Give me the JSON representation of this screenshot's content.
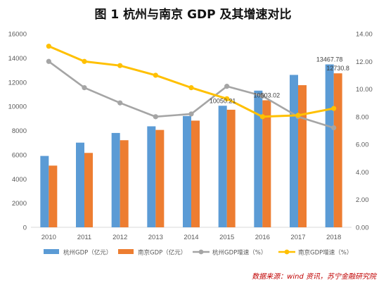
{
  "title": "图 1   杭州与南京 GDP 及其增速对比",
  "source": "数据来源：wind 资讯，苏宁金融研究院",
  "colors": {
    "hz_gdp": "#5b9bd5",
    "nj_gdp": "#ed7d31",
    "hz_growth": "#a5a5a5",
    "nj_growth": "#ffc000"
  },
  "chart_data": {
    "type": "bar",
    "categories": [
      "2010",
      "2011",
      "2012",
      "2013",
      "2014",
      "2015",
      "2016",
      "2017",
      "2018"
    ],
    "series": [
      {
        "name": "杭州GDP（亿元）",
        "kind": "bar",
        "axis": "left",
        "values": [
          5900,
          7000,
          7800,
          8350,
          9200,
          10050.21,
          11300,
          12600,
          13467.78
        ]
      },
      {
        "name": "南京GDP（亿元）",
        "kind": "bar",
        "axis": "left",
        "values": [
          5100,
          6150,
          7200,
          8050,
          8820,
          9720,
          10503.02,
          11750,
          12730.8
        ]
      },
      {
        "name": "杭州GDP增速（%）",
        "kind": "line",
        "axis": "right",
        "values": [
          12.0,
          10.1,
          9.0,
          8.0,
          8.2,
          10.2,
          9.5,
          8.0,
          7.2
        ]
      },
      {
        "name": "南京GDP增速（%）",
        "kind": "line",
        "axis": "right",
        "values": [
          13.1,
          12.0,
          11.7,
          11.0,
          10.1,
          9.3,
          8.0,
          8.1,
          8.6
        ]
      }
    ],
    "data_labels": [
      {
        "series": 0,
        "index": 5,
        "text": "10050.21"
      },
      {
        "series": 1,
        "index": 6,
        "text": "10503.02"
      },
      {
        "series": 0,
        "index": 8,
        "text": "13467.78"
      },
      {
        "series": 1,
        "index": 8,
        "text": "12730.8"
      }
    ],
    "y_left": {
      "min": 0,
      "max": 16000,
      "step": 2000,
      "ticks": [
        "0",
        "2000",
        "4000",
        "6000",
        "8000",
        "10000",
        "12000",
        "14000",
        "16000"
      ]
    },
    "y_right": {
      "min": 0,
      "max": 14,
      "step": 2,
      "ticks": [
        "0.00",
        "2.00",
        "4.00",
        "6.00",
        "8.00",
        "10.00",
        "12.00",
        "14.00"
      ]
    },
    "grid": false,
    "legend_position": "bottom"
  }
}
